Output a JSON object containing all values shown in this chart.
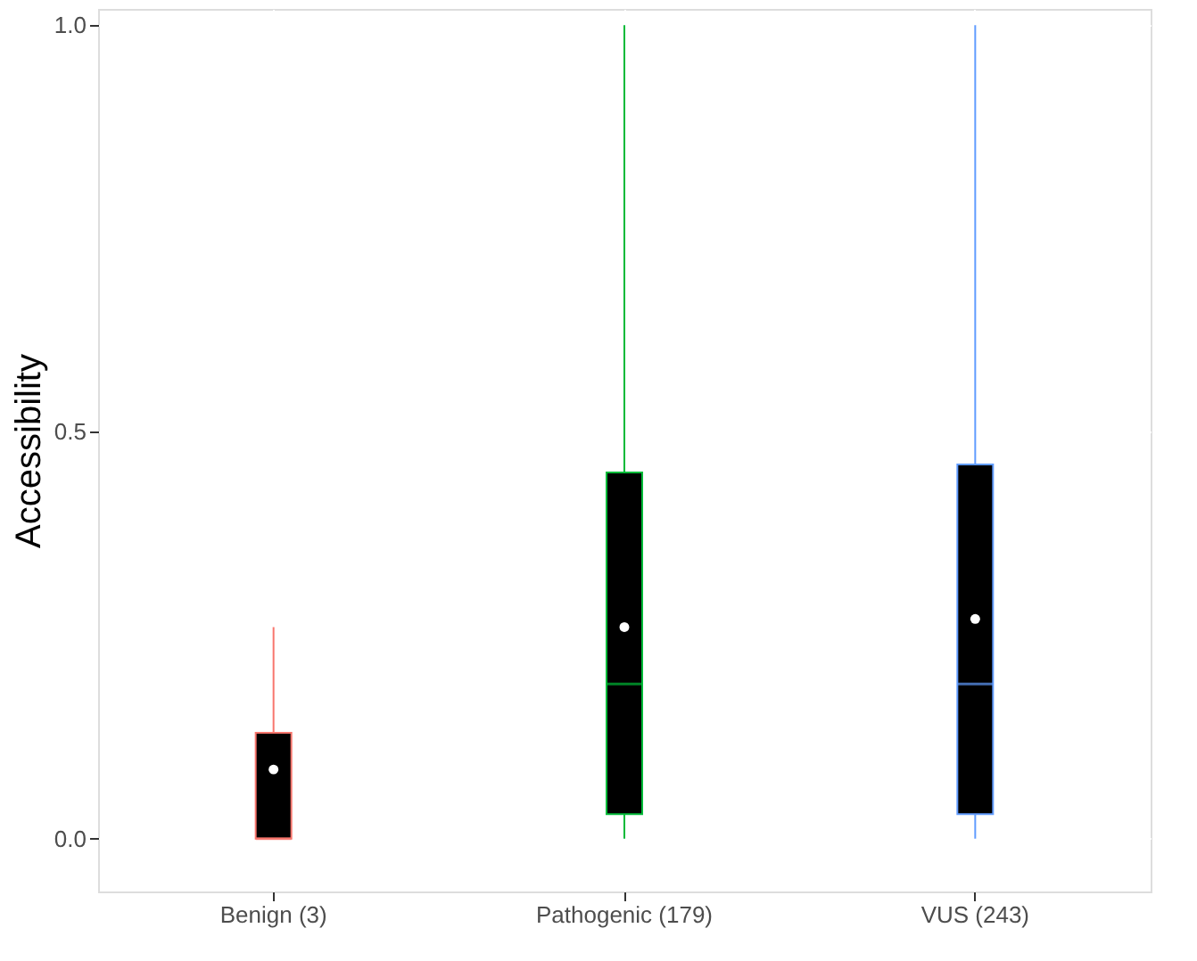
{
  "chart_data": {
    "type": "box",
    "ylabel": "Accessibility",
    "categories": [
      "Benign (3)",
      "Pathogenic (179)",
      "VUS (243)"
    ],
    "boxes": [
      {
        "low": 0,
        "q1": 0,
        "median": 0,
        "q3": 0.13,
        "high": 0.26,
        "mean": 0.085
      },
      {
        "low": 0,
        "q1": 0.03,
        "median": 0.19,
        "q3": 0.45,
        "high": 1.0,
        "mean": 0.26
      },
      {
        "low": 0,
        "q1": 0.03,
        "median": 0.19,
        "q3": 0.46,
        "high": 1.0,
        "mean": 0.27
      }
    ],
    "colors": [
      "#f8766d",
      "#00ba38",
      "#619cff"
    ],
    "ylim": [
      -0.065,
      1.02
    ],
    "yticks": [
      {
        "value": 0,
        "label": "0.0"
      },
      {
        "value": 0.5,
        "label": "0.5"
      },
      {
        "value": 1,
        "label": "1.0"
      }
    ],
    "grid": true
  }
}
